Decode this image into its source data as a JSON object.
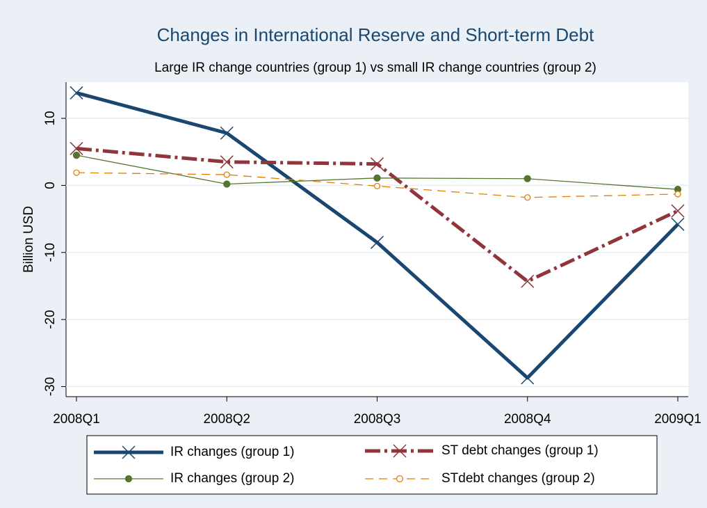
{
  "chart_data": {
    "type": "line",
    "title": "Changes in International Reserve and Short-term Debt",
    "subtitle": "Large IR change countries (group 1) vs small IR change countries (group 2)",
    "y_label": "Billion USD",
    "categories": [
      "2008Q1",
      "2008Q2",
      "2008Q3",
      "2008Q4",
      "2009Q1"
    ],
    "series": [
      {
        "name": "IR changes (group 1)",
        "color": "#1a476f",
        "marker": "x",
        "line_style": "solid",
        "line_width": 5,
        "values": [
          13.8,
          7.8,
          -8.5,
          -28.7,
          -5.8
        ]
      },
      {
        "name": "ST debt changes (group 1)",
        "color": "#90353b",
        "marker": "x",
        "line_style": "dashdot",
        "line_width": 5,
        "values": [
          5.5,
          3.5,
          3.2,
          -14.3,
          -3.8
        ]
      },
      {
        "name": "IR changes (group 2)",
        "color": "#55752f",
        "marker": "filled-circle",
        "line_style": "solid",
        "line_width": 1.3,
        "values": [
          4.5,
          0.2,
          1.1,
          1.0,
          -0.6
        ]
      },
      {
        "name": "STdebt changes (group 2)",
        "color": "#e37e00",
        "marker": "hollow-circle",
        "line_style": "dashed",
        "line_width": 1.3,
        "values": [
          1.9,
          1.6,
          -0.1,
          -1.8,
          -1.3
        ]
      }
    ],
    "ylim": [
      -31.5,
      15.4
    ],
    "yticks": [
      -30,
      -20,
      -10,
      0,
      10
    ],
    "grid": true
  }
}
